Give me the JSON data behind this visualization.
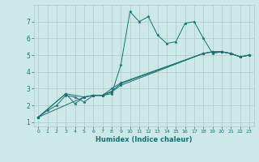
{
  "bg_color": "#cce8e8",
  "grid_color": "#b0c8c8",
  "line_color": "#1a7070",
  "xlabel": "Humidex (Indice chaleur)",
  "xlim": [
    -0.5,
    23.5
  ],
  "ylim": [
    0.75,
    8.0
  ],
  "xticks": [
    0,
    1,
    2,
    3,
    4,
    5,
    6,
    7,
    8,
    9,
    10,
    11,
    12,
    13,
    14,
    15,
    16,
    17,
    18,
    19,
    20,
    21,
    22,
    23
  ],
  "yticks": [
    1,
    2,
    3,
    4,
    5,
    6,
    7
  ],
  "series1_x": [
    0,
    1,
    2,
    3,
    4,
    5,
    6,
    7,
    8,
    9,
    10,
    11,
    12,
    13,
    14,
    15,
    16,
    17,
    18,
    19,
    20,
    21,
    22,
    23
  ],
  "series1_y": [
    1.3,
    1.7,
    2.0,
    2.6,
    2.5,
    2.2,
    2.6,
    2.6,
    2.7,
    4.4,
    7.6,
    7.0,
    7.3,
    6.2,
    5.7,
    5.8,
    6.9,
    7.0,
    6.0,
    5.1,
    5.2,
    5.1,
    4.9,
    5.0
  ],
  "series2_x": [
    0,
    3,
    4,
    5,
    6,
    7,
    8,
    9,
    18,
    19,
    20,
    21,
    22,
    23
  ],
  "series2_y": [
    1.3,
    2.7,
    2.1,
    2.5,
    2.6,
    2.6,
    2.8,
    3.2,
    5.1,
    5.2,
    5.2,
    5.1,
    4.9,
    5.0
  ],
  "series3_x": [
    0,
    3,
    5,
    6,
    7,
    8,
    9,
    18,
    19,
    20,
    21,
    22,
    23
  ],
  "series3_y": [
    1.3,
    2.7,
    2.5,
    2.6,
    2.6,
    2.85,
    3.3,
    5.1,
    5.2,
    5.2,
    5.1,
    4.9,
    5.0
  ],
  "series4_x": [
    0,
    5,
    6,
    7,
    8,
    9,
    18,
    19,
    20,
    21,
    22,
    23
  ],
  "series4_y": [
    1.3,
    2.5,
    2.6,
    2.6,
    3.0,
    3.35,
    5.1,
    5.2,
    5.2,
    5.1,
    4.9,
    5.0
  ]
}
